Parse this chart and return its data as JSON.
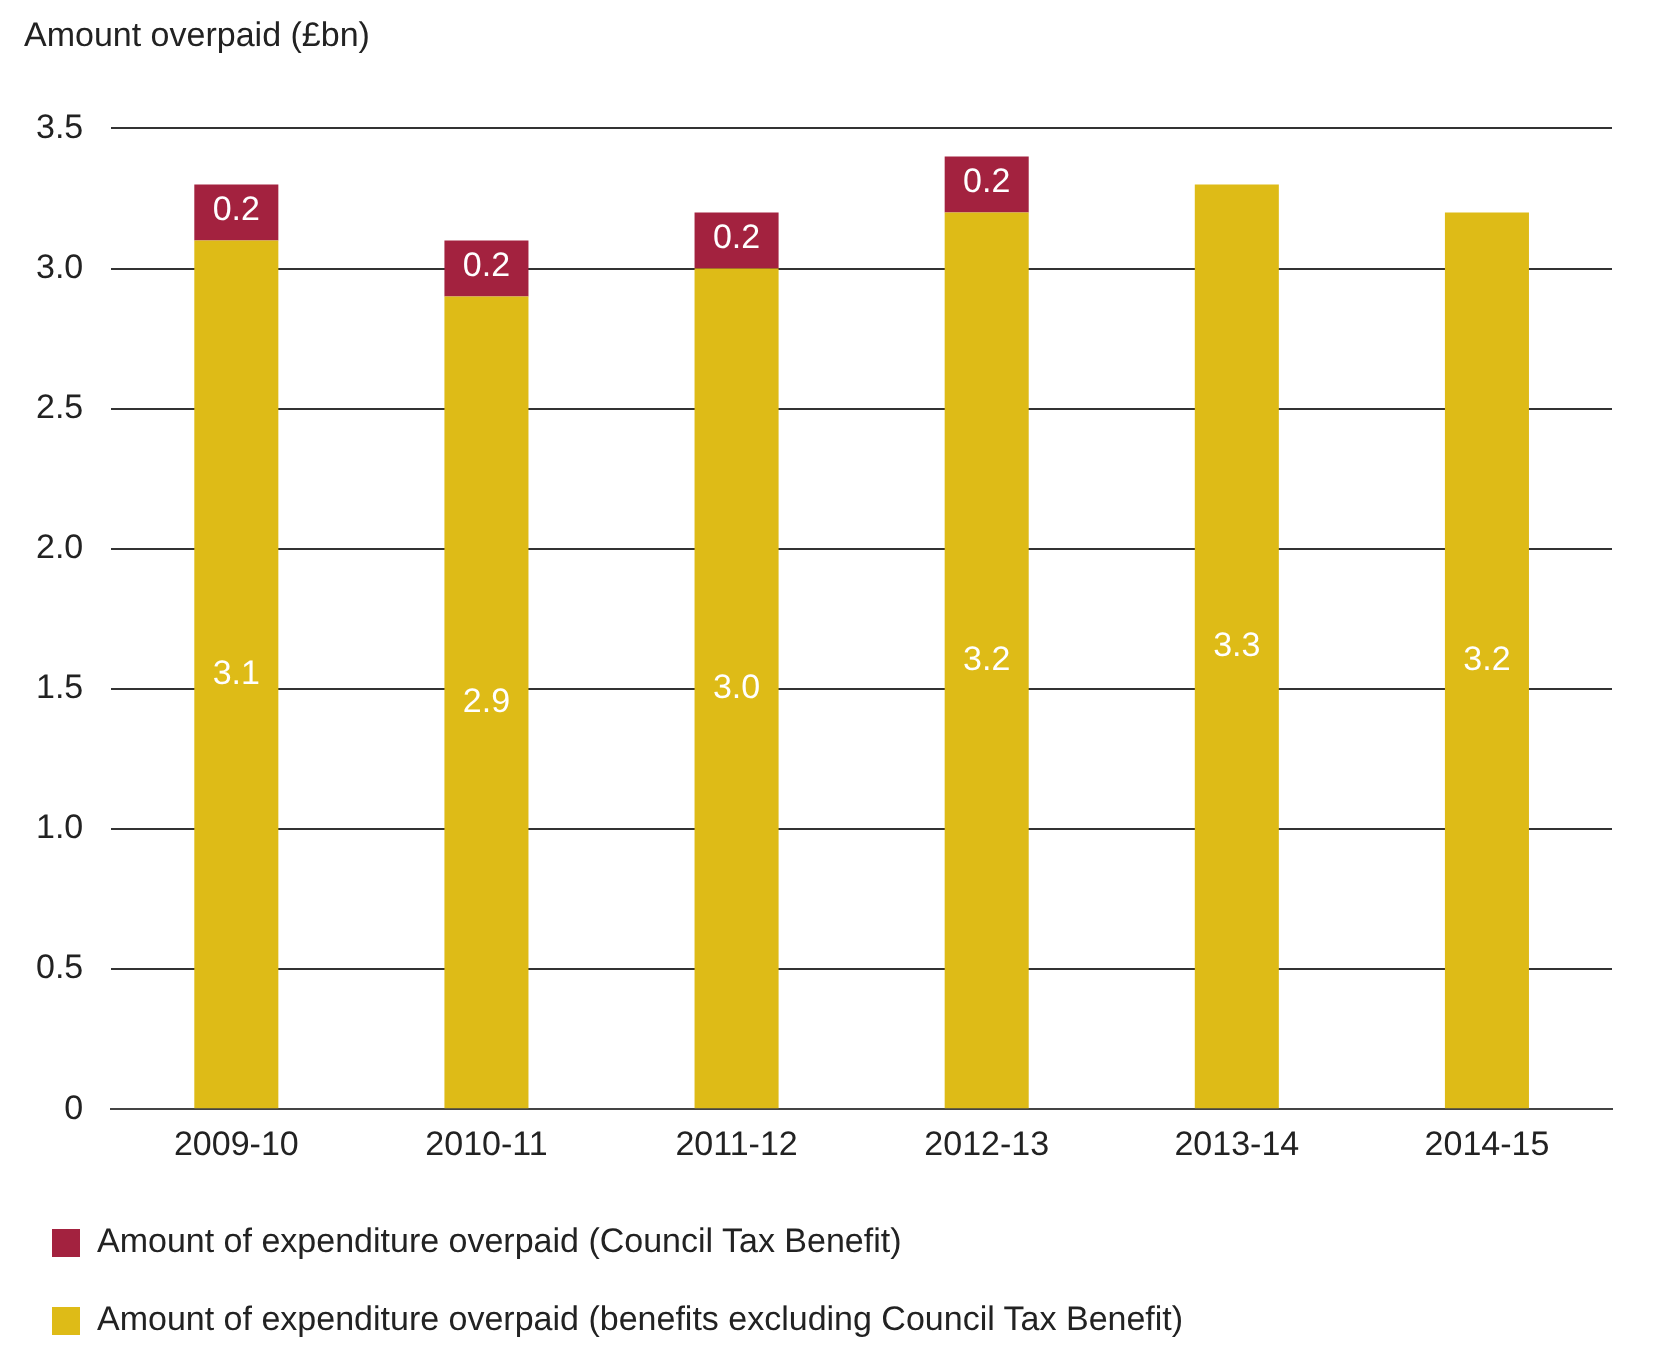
{
  "chart_data": {
    "type": "bar",
    "ylabel": "Amount overpaid (£bn)",
    "categories": [
      "2009-10",
      "2010-11",
      "2011-12",
      "2012-13",
      "2013-14",
      "2014-15"
    ],
    "series": [
      {
        "name": "Amount of expenditure overpaid (benefits excluding Council Tax Benefit)",
        "color": "#debb17",
        "values": [
          3.1,
          2.9,
          3.0,
          3.2,
          3.3,
          3.2
        ],
        "value_labels": [
          "3.1",
          "2.9",
          "3.0",
          "3.2",
          "3.3",
          "3.2"
        ]
      },
      {
        "name": "Amount of expenditure overpaid (Council Tax Benefit)",
        "color": "#a3223f",
        "values": [
          0.2,
          0.2,
          0.2,
          0.2,
          null,
          null
        ],
        "value_labels": [
          "0.2",
          "0.2",
          "0.2",
          "0.2",
          null,
          null
        ]
      }
    ],
    "stacked": true,
    "ylim": [
      0,
      3.5
    ],
    "yticks": [
      0,
      0.5,
      {
        "value": 1,
        "label": "1.0"
      },
      {
        "value": 1.5,
        "label": "1.5"
      },
      {
        "value": 2,
        "label": "2.0"
      },
      {
        "value": 2.5,
        "label": "2.5"
      },
      {
        "value": 3,
        "label": "3.0"
      },
      {
        "value": 3.5,
        "label": "3.5"
      }
    ],
    "grid": "y",
    "legend": "bottom"
  }
}
